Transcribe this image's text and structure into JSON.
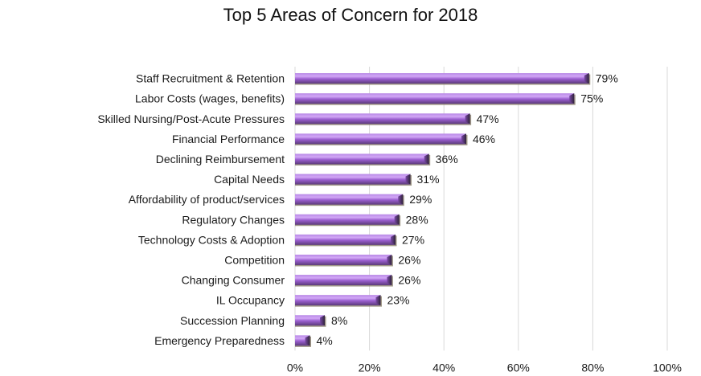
{
  "chart_data": {
    "type": "bar",
    "orientation": "horizontal",
    "title": "Top 5 Areas of Concern for 2018",
    "xlabel": "",
    "ylabel": "",
    "categories": [
      "Staff Recruitment & Retention",
      "Labor Costs (wages, benefits)",
      "Skilled Nursing/Post-Acute Pressures",
      "Financial Performance",
      "Declining Reimbursement",
      "Capital Needs",
      "Affordability of product/services",
      "Regulatory Changes",
      "Technology Costs & Adoption",
      "Competition",
      "Changing Consumer",
      "IL Occupancy",
      "Succession Planning",
      "Emergency Preparedness"
    ],
    "values": [
      79,
      75,
      47,
      46,
      36,
      31,
      29,
      28,
      27,
      26,
      26,
      23,
      8,
      4
    ],
    "value_labels": [
      "79%",
      "75%",
      "47%",
      "46%",
      "36%",
      "31%",
      "29%",
      "28%",
      "27%",
      "26%",
      "26%",
      "23%",
      "8%",
      "4%"
    ],
    "xlim": [
      0,
      100
    ],
    "x_ticks": [
      0,
      20,
      40,
      60,
      80,
      100
    ],
    "x_tick_labels": [
      "0%",
      "20%",
      "40%",
      "60%",
      "80%",
      "100%"
    ],
    "grid": "vertical",
    "legend": "none",
    "colors": {
      "bar": "#9b5fd0",
      "bar_highlight": "#c89af0",
      "bar_shadow": "#5b3a7a",
      "bar_edge": "#8a7f6a"
    }
  }
}
